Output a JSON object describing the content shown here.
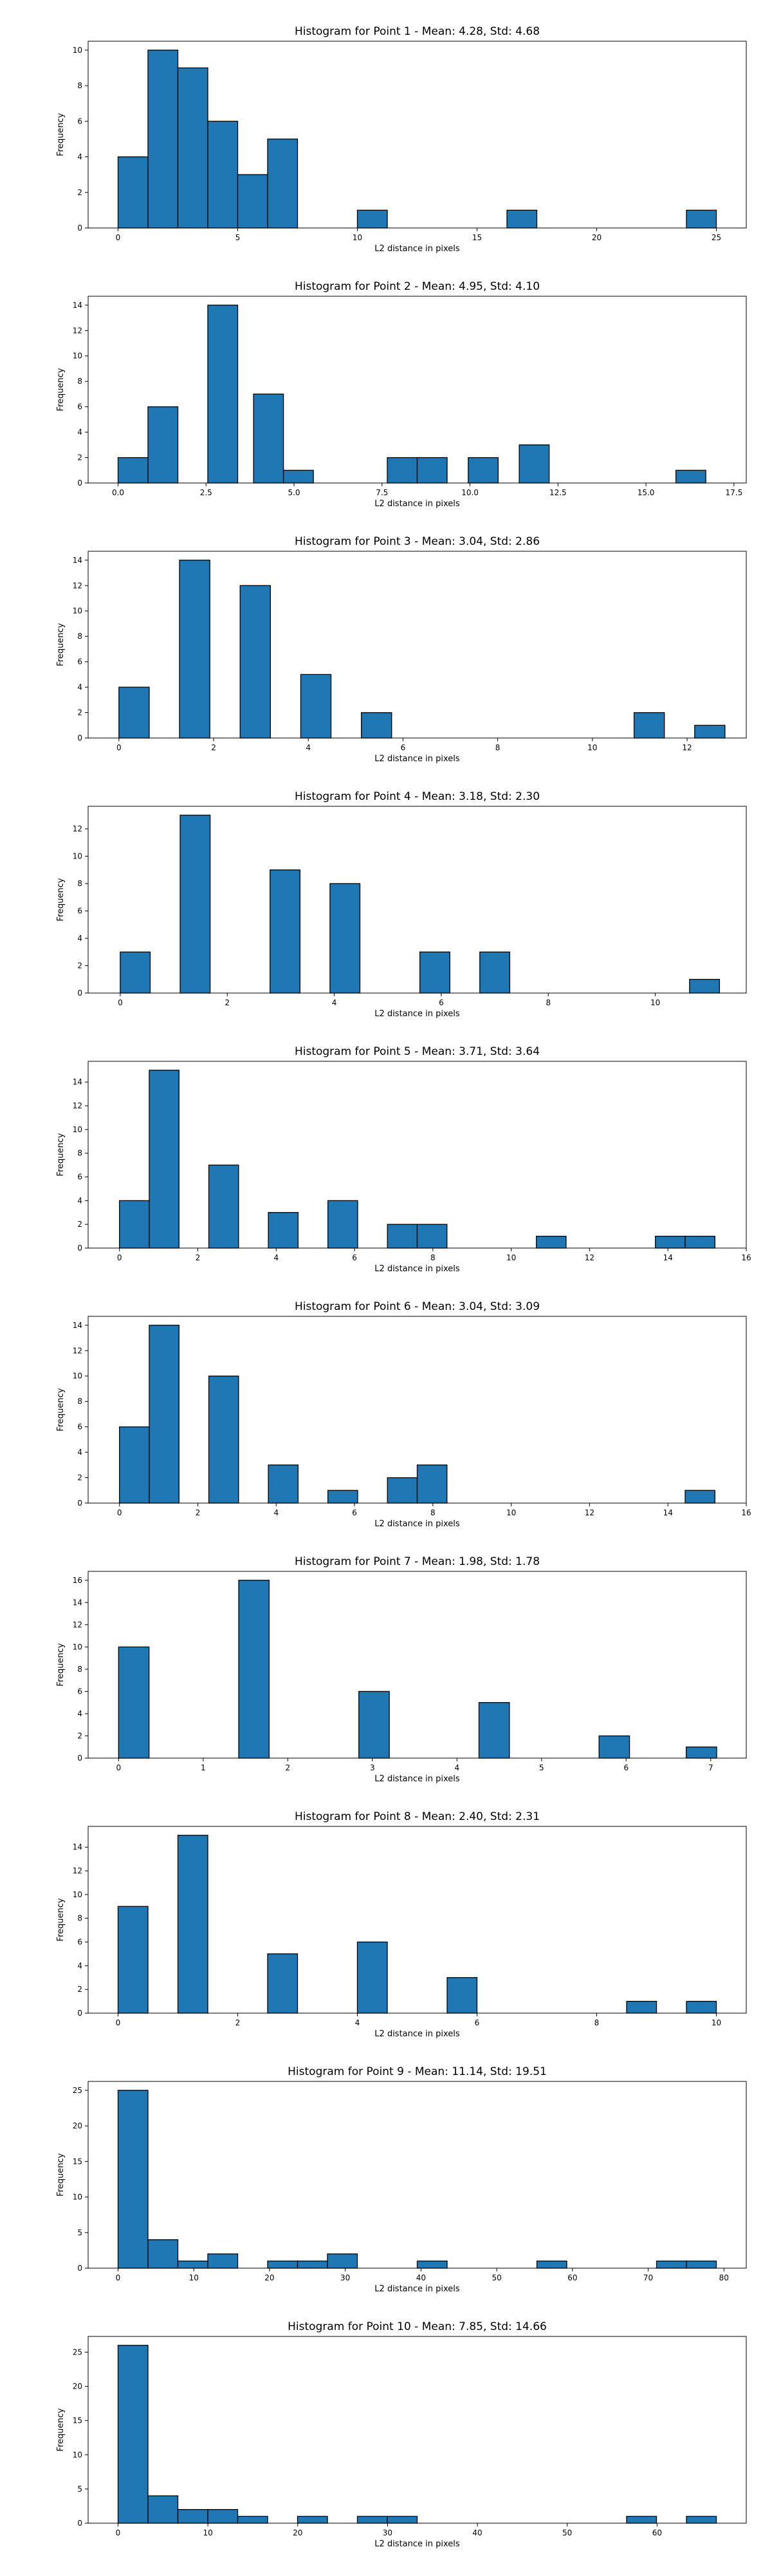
{
  "chart_data": [
    {
      "type": "bar",
      "title": "Histogram for Point 1 - Mean: 4.28, Std: 4.68",
      "xlabel": "L2 distance in pixels",
      "ylabel": "Frequency",
      "xlim": [
        -1.25,
        26.25
      ],
      "ylim": [
        0,
        10.5
      ],
      "xticks": [
        0,
        5,
        10,
        15,
        20,
        25
      ],
      "yticks": [
        0,
        2,
        4,
        6,
        8,
        10
      ],
      "bins": [
        [
          0,
          1.25,
          4
        ],
        [
          1.25,
          2.5,
          10
        ],
        [
          2.5,
          3.75,
          9
        ],
        [
          3.75,
          5.0,
          6
        ],
        [
          5.0,
          6.25,
          3
        ],
        [
          6.25,
          7.5,
          5
        ],
        [
          10.0,
          11.25,
          1
        ],
        [
          16.25,
          17.5,
          1
        ],
        [
          23.75,
          25.0,
          1
        ]
      ]
    },
    {
      "type": "bar",
      "title": "Histogram for Point 2 - Mean: 4.95, Std: 4.10",
      "xlabel": "L2 distance in pixels",
      "ylabel": "Frequency",
      "xlim": [
        -0.85,
        17.85
      ],
      "ylim": [
        0,
        14.7
      ],
      "xticks": [
        0.0,
        2.5,
        5.0,
        7.5,
        10.0,
        12.5,
        15.0,
        17.5
      ],
      "xtick_labels": [
        "0.0",
        "2.5",
        "5.0",
        "7.5",
        "10.0",
        "12.5",
        "15.0",
        "17.5"
      ],
      "yticks": [
        0,
        2,
        4,
        6,
        8,
        10,
        12,
        14
      ],
      "bins": [
        [
          0,
          0.85,
          2
        ],
        [
          0.85,
          1.7,
          6
        ],
        [
          2.55,
          3.4,
          14
        ],
        [
          3.85,
          4.7,
          7
        ],
        [
          4.7,
          5.55,
          1
        ],
        [
          7.65,
          8.5,
          2
        ],
        [
          8.5,
          9.35,
          2
        ],
        [
          9.95,
          10.8,
          2
        ],
        [
          11.4,
          12.25,
          3
        ],
        [
          15.85,
          16.7,
          1
        ]
      ]
    },
    {
      "type": "bar",
      "title": "Histogram for Point 3 - Mean: 3.04, Std: 2.86",
      "xlabel": "L2 distance in pixels",
      "ylabel": "Frequency",
      "xlim": [
        -0.65,
        13.25
      ],
      "ylim": [
        0,
        14.7
      ],
      "xticks": [
        0,
        2,
        4,
        6,
        8,
        10,
        12
      ],
      "yticks": [
        0,
        2,
        4,
        6,
        8,
        10,
        12,
        14
      ],
      "bins": [
        [
          0,
          0.64,
          4
        ],
        [
          1.28,
          1.92,
          14
        ],
        [
          2.56,
          3.2,
          12
        ],
        [
          3.84,
          4.48,
          5
        ],
        [
          5.12,
          5.76,
          2
        ],
        [
          10.88,
          11.52,
          2
        ],
        [
          12.16,
          12.8,
          1
        ]
      ]
    },
    {
      "type": "bar",
      "title": "Histogram for Point 4 - Mean: 3.18, Std: 2.30",
      "xlabel": "L2 distance in pixels",
      "ylabel": "Frequency",
      "xlim": [
        -0.6,
        11.7
      ],
      "ylim": [
        0,
        13.65
      ],
      "xticks": [
        0,
        2,
        4,
        6,
        8,
        10
      ],
      "yticks": [
        0,
        2,
        4,
        6,
        8,
        10,
        12
      ],
      "bins": [
        [
          0,
          0.56,
          3
        ],
        [
          1.12,
          1.68,
          13
        ],
        [
          2.8,
          3.36,
          9
        ],
        [
          3.92,
          4.48,
          8
        ],
        [
          5.6,
          6.16,
          3
        ],
        [
          6.72,
          7.28,
          3
        ],
        [
          10.64,
          11.2,
          1
        ]
      ]
    },
    {
      "type": "bar",
      "title": "Histogram for Point 5 - Mean: 3.71, Std: 3.64",
      "xlabel": "L2 distance in pixels",
      "ylabel": "Frequency",
      "xlim": [
        -0.8,
        16.0
      ],
      "ylim": [
        0,
        15.75
      ],
      "xticks": [
        0,
        2,
        4,
        6,
        8,
        10,
        12,
        14,
        16
      ],
      "yticks": [
        0,
        2,
        4,
        6,
        8,
        10,
        12,
        14
      ],
      "bins": [
        [
          0,
          0.76,
          4
        ],
        [
          0.76,
          1.52,
          15
        ],
        [
          2.28,
          3.04,
          7
        ],
        [
          3.8,
          4.56,
          3
        ],
        [
          5.32,
          6.08,
          4
        ],
        [
          6.84,
          7.6,
          2
        ],
        [
          7.6,
          8.36,
          2
        ],
        [
          10.64,
          11.4,
          1
        ],
        [
          13.68,
          14.44,
          1
        ],
        [
          14.44,
          15.2,
          1
        ]
      ]
    },
    {
      "type": "bar",
      "title": "Histogram for Point 6 - Mean: 3.04, Std: 3.09",
      "xlabel": "L2 distance in pixels",
      "ylabel": "Frequency",
      "xlim": [
        -0.8,
        16.0
      ],
      "ylim": [
        0,
        14.7
      ],
      "xticks": [
        0,
        2,
        4,
        6,
        8,
        10,
        12,
        14,
        16
      ],
      "yticks": [
        0,
        2,
        4,
        6,
        8,
        10,
        12,
        14
      ],
      "bins": [
        [
          0,
          0.76,
          6
        ],
        [
          0.76,
          1.52,
          14
        ],
        [
          2.28,
          3.04,
          10
        ],
        [
          3.8,
          4.56,
          3
        ],
        [
          5.32,
          6.08,
          1
        ],
        [
          6.84,
          7.6,
          2
        ],
        [
          7.6,
          8.36,
          3
        ],
        [
          14.44,
          15.2,
          1
        ]
      ]
    },
    {
      "type": "bar",
      "title": "Histogram for Point 7 - Mean: 1.98, Std: 1.78",
      "xlabel": "L2 distance in pixels",
      "ylabel": "Frequency",
      "xlim": [
        -0.36,
        7.42
      ],
      "ylim": [
        0,
        16.8
      ],
      "xticks": [
        0,
        1,
        2,
        3,
        4,
        5,
        6,
        7
      ],
      "yticks": [
        0,
        2,
        4,
        6,
        8,
        10,
        12,
        14,
        16
      ],
      "bins": [
        [
          0,
          0.36,
          10
        ],
        [
          1.42,
          1.78,
          16
        ],
        [
          2.84,
          3.2,
          6
        ],
        [
          4.26,
          4.62,
          5
        ],
        [
          5.68,
          6.04,
          2
        ],
        [
          6.71,
          7.07,
          1
        ]
      ]
    },
    {
      "type": "bar",
      "title": "Histogram for Point 8 - Mean: 2.40, Std: 2.31",
      "xlabel": "L2 distance in pixels",
      "ylabel": "Frequency",
      "xlim": [
        -0.5,
        10.5
      ],
      "ylim": [
        0,
        15.75
      ],
      "xticks": [
        0,
        2,
        4,
        6,
        8,
        10
      ],
      "yticks": [
        0,
        2,
        4,
        6,
        8,
        10,
        12,
        14
      ],
      "bins": [
        [
          0,
          0.5,
          9
        ],
        [
          1.0,
          1.5,
          15
        ],
        [
          2.5,
          3.0,
          5
        ],
        [
          4.0,
          4.5,
          6
        ],
        [
          5.5,
          6.0,
          3
        ],
        [
          8.5,
          9.0,
          1
        ],
        [
          9.5,
          10.0,
          1
        ]
      ]
    },
    {
      "type": "bar",
      "title": "Histogram for Point 9 - Mean: 11.14, Std: 19.51",
      "xlabel": "L2 distance in pixels",
      "ylabel": "Frequency",
      "xlim": [
        -3.95,
        82.95
      ],
      "ylim": [
        0,
        26.25
      ],
      "xticks": [
        0,
        10,
        20,
        30,
        40,
        50,
        60,
        70,
        80
      ],
      "yticks": [
        0,
        5,
        10,
        15,
        20,
        25
      ],
      "bins": [
        [
          0,
          3.95,
          25
        ],
        [
          3.95,
          7.9,
          4
        ],
        [
          7.9,
          11.85,
          1
        ],
        [
          11.85,
          15.8,
          2
        ],
        [
          19.75,
          23.7,
          1
        ],
        [
          23.7,
          27.65,
          1
        ],
        [
          27.65,
          31.6,
          2
        ],
        [
          39.5,
          43.45,
          1
        ],
        [
          55.3,
          59.25,
          1
        ],
        [
          71.1,
          75.05,
          1
        ],
        [
          75.05,
          79.0,
          1
        ]
      ]
    },
    {
      "type": "bar",
      "title": "Histogram for Point 10 - Mean: 7.85, Std: 14.66",
      "xlabel": "L2 distance in pixels",
      "ylabel": "Frequency",
      "xlim": [
        -3.33,
        69.93
      ],
      "ylim": [
        0,
        27.3
      ],
      "xticks": [
        0,
        10,
        20,
        30,
        40,
        50,
        60
      ],
      "yticks": [
        0,
        5,
        10,
        15,
        20,
        25
      ],
      "bins": [
        [
          0,
          3.33,
          26
        ],
        [
          3.33,
          6.66,
          4
        ],
        [
          6.66,
          9.99,
          2
        ],
        [
          9.99,
          13.32,
          2
        ],
        [
          13.32,
          16.65,
          1
        ],
        [
          19.98,
          23.31,
          1
        ],
        [
          26.64,
          29.97,
          1
        ],
        [
          29.97,
          33.3,
          1
        ],
        [
          56.61,
          59.94,
          1
        ],
        [
          63.27,
          66.6,
          1
        ]
      ]
    }
  ]
}
